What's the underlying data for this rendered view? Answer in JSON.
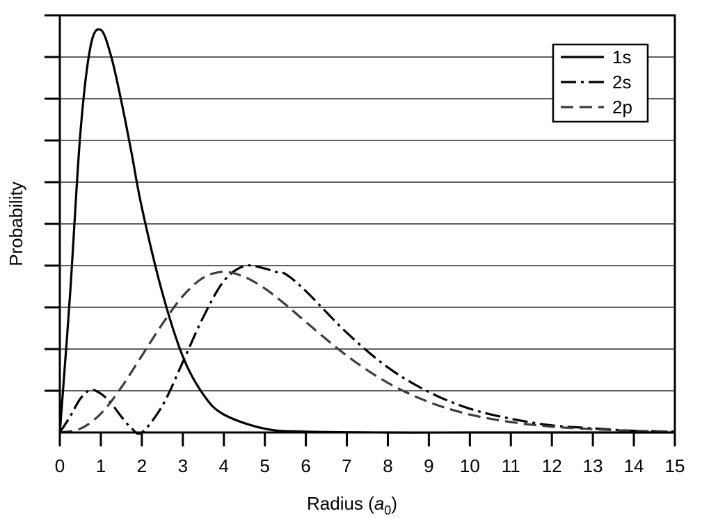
{
  "chart_data": {
    "type": "line",
    "title": "",
    "xlabel": {
      "main": "Radius (",
      "var": "a",
      "sub": "0",
      "close": ")"
    },
    "ylabel": "Probability",
    "xlim": [
      0,
      15
    ],
    "ylim": [
      0,
      10
    ],
    "x_ticks": [
      "0",
      "1",
      "2",
      "3",
      "4",
      "5",
      "6",
      "7",
      "8",
      "9",
      "10",
      "11",
      "12",
      "13",
      "14",
      "15"
    ],
    "y_tick_count": 10,
    "y_tick_labels": [],
    "grid": "horizontal",
    "legend_position": "top-right",
    "series": [
      {
        "name": "1s",
        "style": "solid",
        "color": "#000000",
        "x": [
          0,
          0.25,
          0.5,
          0.75,
          1.0,
          1.25,
          1.5,
          1.75,
          2.0,
          2.5,
          3.0,
          3.5,
          4.0,
          5.0,
          6.0,
          8.0,
          10.0,
          15.0
        ],
        "y": [
          0,
          3.31,
          7.17,
          9.26,
          9.65,
          9.02,
          7.94,
          6.7,
          5.39,
          3.35,
          1.82,
          0.91,
          0.43,
          0.09,
          0.02,
          0.0,
          0.0,
          0.0
        ]
      },
      {
        "name": "2s",
        "style": "dashdot",
        "color": "#000000",
        "x": [
          0,
          0.25,
          0.5,
          0.75,
          1.0,
          1.25,
          1.5,
          1.75,
          2.0,
          2.5,
          3.0,
          3.5,
          4.0,
          4.5,
          5.0,
          5.24,
          5.5,
          6.0,
          7.0,
          8.0,
          9.0,
          10.0,
          11.0,
          12.0,
          13.0,
          14.0,
          15.0
        ],
        "y": [
          0,
          0.38,
          0.81,
          1.02,
          0.93,
          0.7,
          0.38,
          0.1,
          0.0,
          0.64,
          1.69,
          2.77,
          3.63,
          3.99,
          3.93,
          3.85,
          3.8,
          3.39,
          2.39,
          1.56,
          0.97,
          0.57,
          0.33,
          0.17,
          0.1,
          0.04,
          0.02
        ]
      },
      {
        "name": "2p",
        "style": "dashed",
        "color": "#3c3c3c",
        "x": [
          0,
          0.5,
          1.0,
          1.5,
          2.0,
          2.5,
          3.0,
          3.5,
          4.0,
          4.5,
          5.0,
          5.5,
          6.0,
          7.0,
          8.0,
          9.0,
          10.0,
          11.0,
          12.0,
          13.0,
          14.0,
          15.0
        ],
        "y": [
          0,
          0.09,
          0.45,
          1.08,
          1.84,
          2.6,
          3.27,
          3.71,
          3.85,
          3.73,
          3.45,
          3.07,
          2.65,
          1.84,
          1.19,
          0.73,
          0.43,
          0.25,
          0.14,
          0.08,
          0.04,
          0.02
        ]
      }
    ]
  }
}
